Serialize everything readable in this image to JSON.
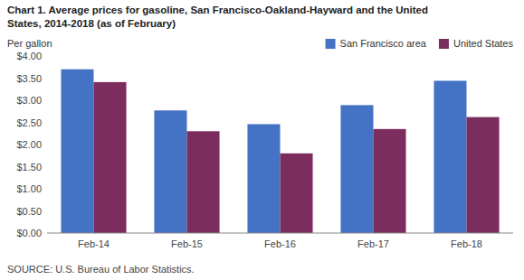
{
  "chart_data": {
    "type": "bar",
    "title": "Chart 1. Average prices for gasoline, San Francisco-Oakland-Hayward and the United\nStates, 2014-2018  (as of February)",
    "y_label": "Per gallon",
    "source": "SOURCE: U.S. Bureau of Labor Statistics.",
    "categories": [
      "Feb-14",
      "Feb-15",
      "Feb-16",
      "Feb-17",
      "Feb-18"
    ],
    "series": [
      {
        "name": "San Francisco area",
        "color": "#4472C4",
        "values": [
          3.7,
          2.77,
          2.46,
          2.89,
          3.44
        ]
      },
      {
        "name": "United States",
        "color": "#7B2D5E",
        "values": [
          3.41,
          2.3,
          1.8,
          2.35,
          2.62
        ]
      }
    ],
    "ylim": [
      0.0,
      4.0
    ],
    "yticks": [
      {
        "value": 0.0,
        "label": "$0.00"
      },
      {
        "value": 0.5,
        "label": "$0.50"
      },
      {
        "value": 1.0,
        "label": "$1.00"
      },
      {
        "value": 1.5,
        "label": "$1.50"
      },
      {
        "value": 2.0,
        "label": "$2.00"
      },
      {
        "value": 2.5,
        "label": "$2.50"
      },
      {
        "value": 3.0,
        "label": "$3.00"
      },
      {
        "value": 3.5,
        "label": "$3.50"
      },
      {
        "value": 4.0,
        "label": "$4.00"
      }
    ],
    "grid": false,
    "legend": "upper right"
  }
}
